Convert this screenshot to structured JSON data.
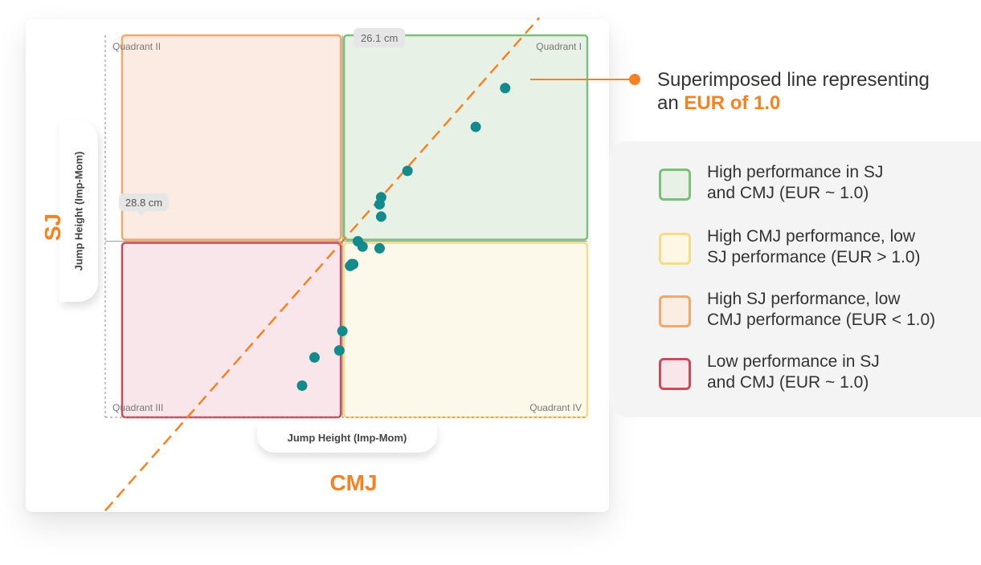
{
  "annotation": {
    "text_prefix": "Superimposed line representing",
    "text_line2_prefix": "an ",
    "highlight": "EUR of 1.0"
  },
  "axes": {
    "x_label": "Jump Height (Imp-Mom)",
    "y_label": "Jump Height (Imp-Mom)",
    "x_title": "CMJ",
    "y_title": "SJ"
  },
  "colors": {
    "accent": "#f58220",
    "point": "#138a8c",
    "q1_fill": "#e8f1e6",
    "q1_stroke": "#7cbf7a",
    "q2_fill": "#fcebe2",
    "q2_stroke": "#f2a86a",
    "q3_fill": "#f8e6ea",
    "q3_stroke": "#cc4a5e",
    "q4_fill": "#fdf9ea",
    "q4_stroke": "#f5dc88"
  },
  "legend": [
    {
      "text": "High performance in SJ\nand CMJ (EUR ~ 1.0)",
      "fill": "#e9f1e7",
      "stroke": "#7cbf7a",
      "icon": "green-square"
    },
    {
      "text": "High CMJ performance, low\nSJ performance (EUR > 1.0)",
      "fill": "#fdf8e6",
      "stroke": "#f5dc88",
      "icon": "yellow-square"
    },
    {
      "text": "High SJ performance, low\nCMJ performance (EUR < 1.0)",
      "fill": "#fcede3",
      "stroke": "#f2a86a",
      "icon": "orange-square"
    },
    {
      "text": "Low performance in SJ\nand CMJ (EUR ~ 1.0)",
      "fill": "#f8e6ea",
      "stroke": "#cc4a5e",
      "icon": "red-square"
    }
  ],
  "chart_data": {
    "type": "scatter",
    "x_label": "Jump Height (Imp-Mom)",
    "y_label": "Jump Height (Imp-Mom)",
    "x_title": "CMJ",
    "y_title": "SJ",
    "x_mean_label": "26.1 cm",
    "y_mean_label": "28.8 cm",
    "x_mean": 26.1,
    "y_mean": 28.8,
    "xlim": [
      10.8,
      41.9
    ],
    "ylim": [
      18.8,
      40.5
    ],
    "quadrants": [
      {
        "name": "Quadrant I",
        "position": "top-right"
      },
      {
        "name": "Quadrant II",
        "position": "top-left"
      },
      {
        "name": "Quadrant III",
        "position": "bottom-left"
      },
      {
        "name": "Quadrant IV",
        "position": "bottom-right"
      }
    ],
    "reference_line": {
      "label": "EUR 1.0",
      "slope": 1.0,
      "intercept": 2.7
    },
    "series": [
      {
        "x": [
          23.5,
          24.3,
          25.9,
          26.1,
          26.6,
          26.7,
          26.8,
          27.1,
          27.4,
          28.5,
          28.5,
          28.6,
          28.6,
          30.3,
          34.7,
          36.6
        ],
        "y": [
          20.6,
          22.2,
          22.6,
          23.7,
          27.4,
          27.5,
          27.5,
          28.8,
          28.5,
          28.4,
          30.9,
          31.3,
          30.2,
          32.8,
          35.3,
          37.5
        ]
      }
    ]
  }
}
